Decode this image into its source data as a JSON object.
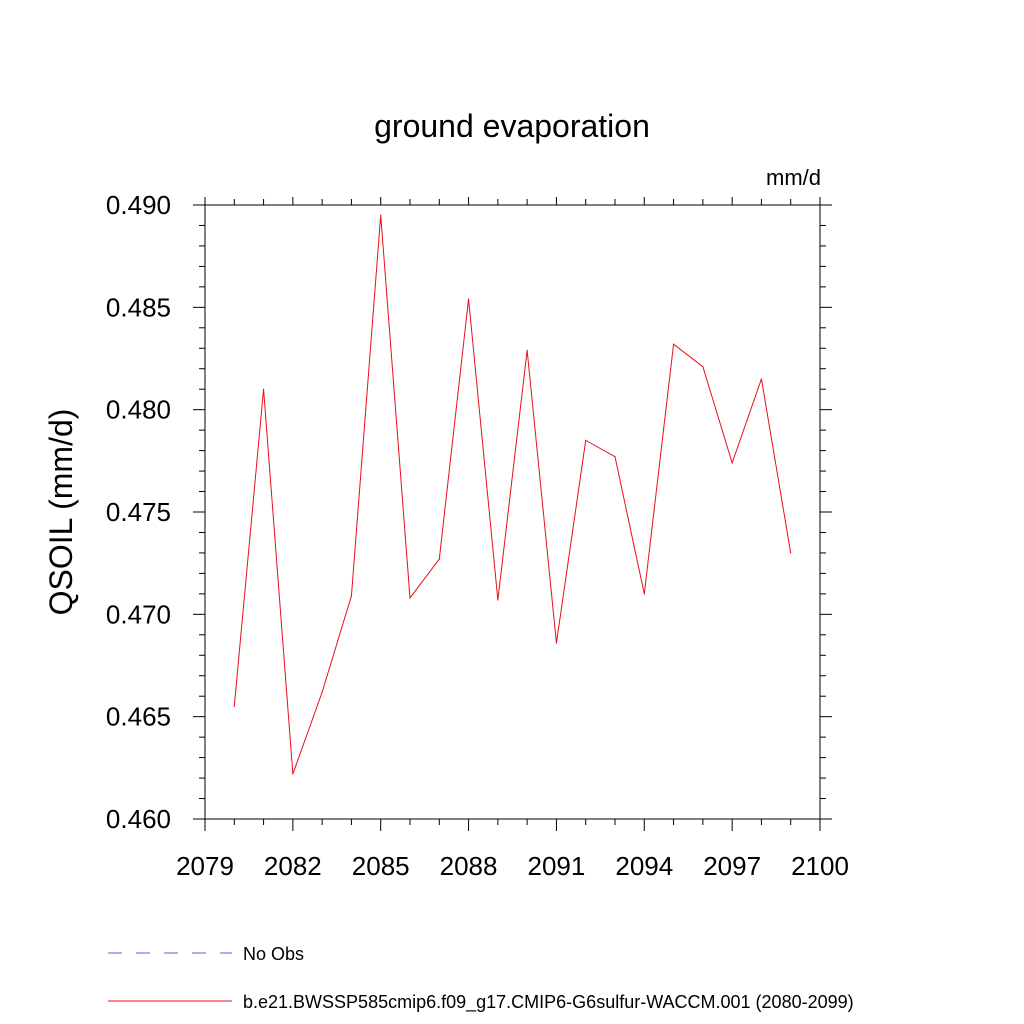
{
  "chart_data": {
    "type": "line",
    "title": "ground evaporation",
    "units": "mm/d",
    "ylabel": "QSOIL  (mm/d)",
    "xlim": [
      2079,
      2100
    ],
    "ylim": [
      0.46,
      0.49
    ],
    "x_ticks": [
      2079,
      2082,
      2085,
      2088,
      2091,
      2094,
      2097,
      2100
    ],
    "x_tick_labels": [
      "2079",
      "2082",
      "2085",
      "2088",
      "2091",
      "2094",
      "2097",
      "2100"
    ],
    "y_ticks": [
      0.46,
      0.465,
      0.47,
      0.475,
      0.48,
      0.485,
      0.49
    ],
    "y_tick_labels": [
      "0.460",
      "0.465",
      "0.470",
      "0.475",
      "0.480",
      "0.485",
      "0.490"
    ],
    "x_minor_step": 1,
    "y_minor_step": 0.001,
    "series": [
      {
        "name": "b.e21.BWSSP585cmip6.f09_g17.CMIP6-G6sulfur-WACCM.001 (2080-2099)",
        "color": "#e8101a",
        "x": [
          2080,
          2081,
          2082,
          2083,
          2084,
          2085,
          2086,
          2087,
          2088,
          2089,
          2090,
          2091,
          2092,
          2093,
          2094,
          2095,
          2096,
          2097,
          2098,
          2099
        ],
        "values": [
          0.4655,
          0.481,
          0.4622,
          0.4662,
          0.4709,
          0.4895,
          0.4708,
          0.4727,
          0.4854,
          0.4707,
          0.4829,
          0.4686,
          0.4785,
          0.4777,
          0.471,
          0.4832,
          0.4821,
          0.4774,
          0.4815,
          0.473
        ]
      }
    ],
    "legend": [
      {
        "label": "No Obs",
        "color": "#6a5acd",
        "style": "dashed"
      },
      {
        "label": "b.e21.BWSSP585cmip6.f09_g17.CMIP6-G6sulfur-WACCM.001 (2080-2099)",
        "color": "#e8101a",
        "style": "solid"
      }
    ],
    "legend_placement": "bottom",
    "grid": false
  }
}
